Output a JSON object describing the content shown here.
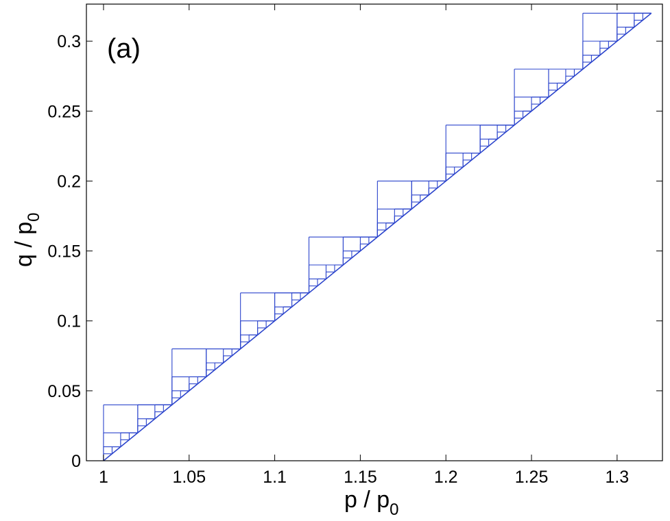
{
  "chart_data": {
    "type": "line",
    "panel_label": "(a)",
    "xlabel": {
      "main": "p / p",
      "sub": "0"
    },
    "ylabel": {
      "main": "q / p",
      "sub": "0"
    },
    "xlim": [
      0.99,
      1.3265
    ],
    "ylim": [
      0,
      0.3265
    ],
    "x_ticks": [
      1,
      1.05,
      1.1,
      1.15,
      1.2,
      1.25,
      1.3
    ],
    "x_tick_labels": [
      "1",
      "1.05",
      "1.1",
      "1.15",
      "1.2",
      "1.25",
      "1.3"
    ],
    "y_ticks": [
      0,
      0.05,
      0.1,
      0.15,
      0.2,
      0.25,
      0.3
    ],
    "y_tick_labels": [
      "0",
      "0.05",
      "0.1",
      "0.15",
      "0.2",
      "0.25",
      "0.3"
    ],
    "grid": false,
    "line_color": "#2b44cc",
    "diagonal": {
      "x": [
        1,
        1.32
      ],
      "y": [
        0,
        0.32
      ]
    },
    "staircase_blocks": [
      {
        "x0": 1.0,
        "y0": 0.0,
        "size": 0.04
      },
      {
        "x0": 1.04,
        "y0": 0.04,
        "size": 0.04
      },
      {
        "x0": 1.08,
        "y0": 0.08,
        "size": 0.04
      },
      {
        "x0": 1.12,
        "y0": 0.12,
        "size": 0.04
      },
      {
        "x0": 1.16,
        "y0": 0.16,
        "size": 0.04
      },
      {
        "x0": 1.2,
        "y0": 0.2,
        "size": 0.04
      },
      {
        "x0": 1.24,
        "y0": 0.24,
        "size": 0.04
      },
      {
        "x0": 1.28,
        "y0": 0.28,
        "size": 0.04
      }
    ]
  }
}
